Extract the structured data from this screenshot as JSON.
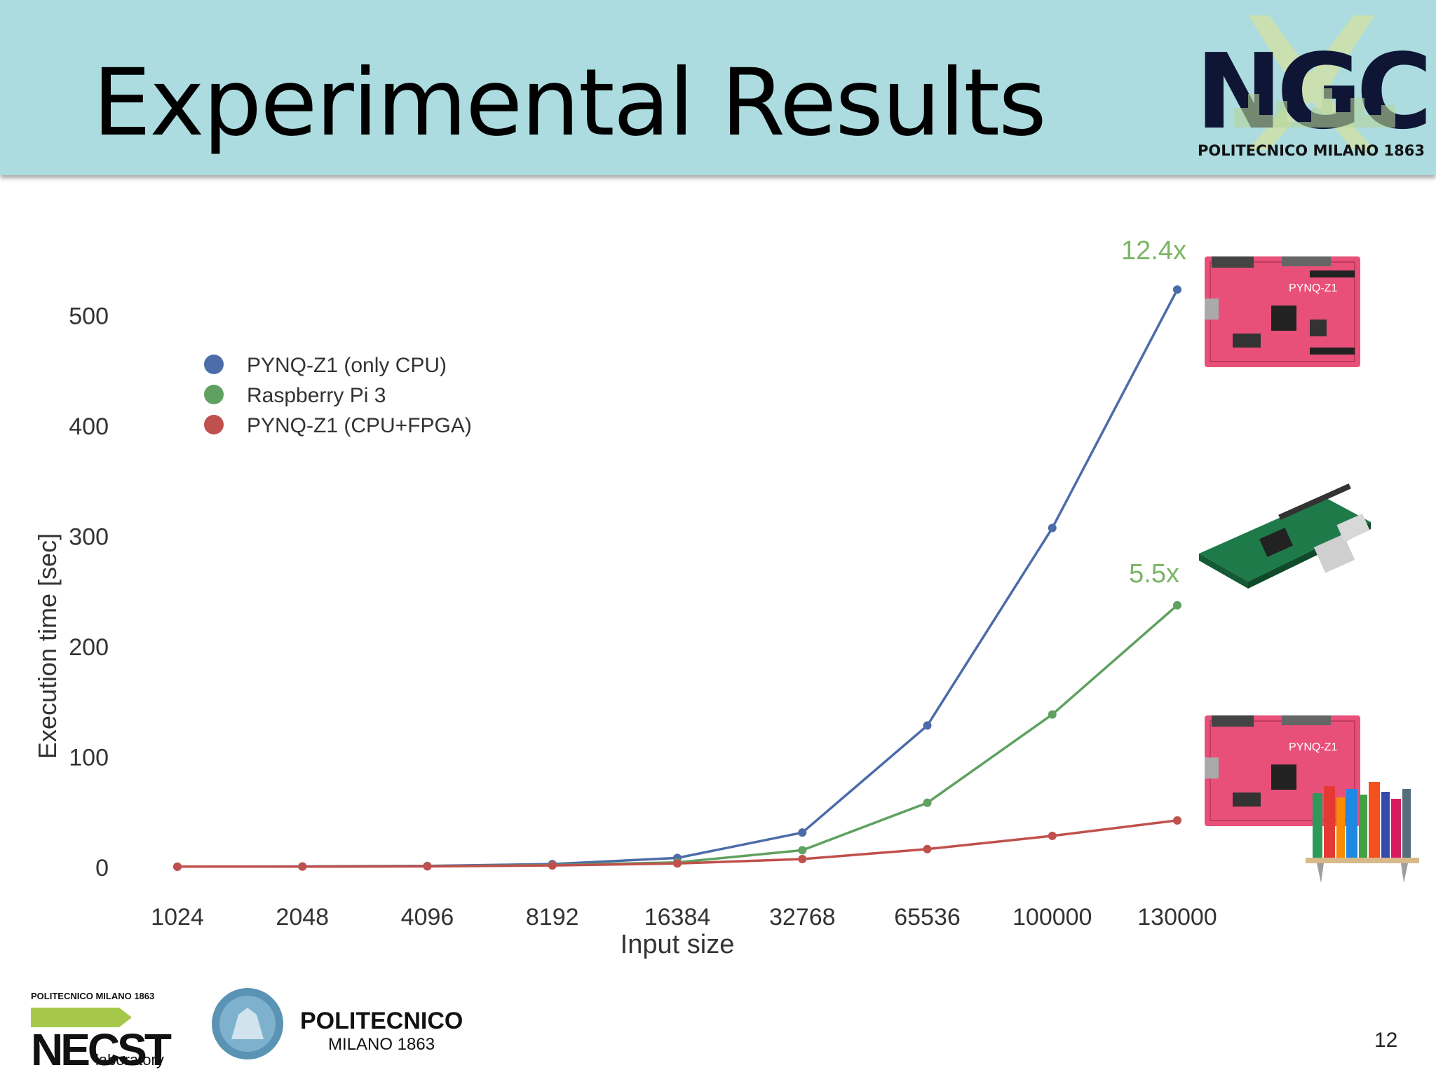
{
  "slide": {
    "title": "Experimental Results",
    "page_number": "12"
  },
  "logos": {
    "ngc_text": "NGC",
    "ngc_subtitle": "POLITECNICO MILANO 1863",
    "necst_top": "POLITECNICO MILANO 1863",
    "necst_name": "NECST",
    "necst_sub": "laboratory",
    "polimi_name": "POLITECNICO",
    "polimi_sub": "MILANO 1863"
  },
  "chart_data": {
    "type": "line",
    "xlabel": "Input size",
    "ylabel": "Execution time [sec]",
    "ylim": [
      0,
      540
    ],
    "yticks": [
      0,
      100,
      200,
      300,
      400,
      500
    ],
    "categories": [
      "1024",
      "2048",
      "4096",
      "8192",
      "16384",
      "32768",
      "65536",
      "100000",
      "130000"
    ],
    "grid": false,
    "legend_position": "top-left",
    "series": [
      {
        "name": "PYNQ-Z1 (only CPU)",
        "color": "#4c6ca8",
        "values": [
          0.1,
          0.3,
          0.8,
          2.5,
          8,
          31,
          128,
          307,
          523
        ]
      },
      {
        "name": "Raspberry Pi 3",
        "color": "#5fa160",
        "values": [
          0.1,
          0.2,
          0.5,
          1.5,
          4,
          15,
          58,
          138,
          237
        ]
      },
      {
        "name": "PYNQ-Z1 (CPU+FPGA)",
        "color": "#c0504d",
        "values": [
          0.1,
          0.2,
          0.4,
          1.2,
          3,
          7,
          16,
          28,
          42
        ]
      }
    ],
    "annotations": [
      {
        "text": "12.4x",
        "color": "#7cb565"
      },
      {
        "text": "5.5x",
        "color": "#7cb565"
      }
    ],
    "board_labels": [
      "PYNQ-Z1",
      "PYNQ-Z1"
    ]
  }
}
